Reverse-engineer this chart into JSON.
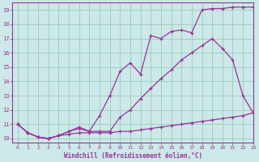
{
  "background_color": "#cce8e8",
  "grid_color": "#99ccbb",
  "line_color": "#993399",
  "xlim": [
    -0.5,
    23
  ],
  "ylim": [
    9.7,
    19.5
  ],
  "yticks": [
    10,
    11,
    12,
    13,
    14,
    15,
    16,
    17,
    18,
    19
  ],
  "xticks": [
    0,
    1,
    2,
    3,
    4,
    5,
    6,
    7,
    8,
    9,
    10,
    11,
    12,
    13,
    14,
    15,
    16,
    17,
    18,
    19,
    20,
    21,
    22,
    23
  ],
  "xlabel": "Windchill (Refroidissement éolien,°C)",
  "series1_x": [
    0,
    1,
    2,
    3,
    4,
    5,
    6,
    7,
    8,
    9,
    10,
    11,
    12,
    13,
    14,
    15,
    16,
    17,
    18,
    19,
    20,
    21,
    22,
    23
  ],
  "series1_y": [
    11.0,
    10.4,
    10.1,
    10.0,
    10.2,
    10.3,
    10.4,
    10.4,
    10.4,
    10.4,
    10.5,
    10.5,
    10.6,
    10.7,
    10.8,
    10.9,
    11.0,
    11.1,
    11.2,
    11.3,
    11.4,
    11.5,
    11.6,
    11.8
  ],
  "series2_x": [
    0,
    1,
    2,
    3,
    4,
    5,
    6,
    7,
    8,
    9,
    10,
    11,
    12,
    13,
    14,
    15,
    16,
    17,
    18,
    19,
    20,
    21,
    22,
    23
  ],
  "series2_y": [
    11.0,
    10.4,
    10.1,
    10.0,
    10.2,
    10.5,
    10.7,
    10.5,
    10.5,
    10.5,
    11.5,
    12.0,
    12.8,
    13.5,
    14.2,
    14.8,
    15.5,
    16.0,
    16.5,
    17.0,
    16.3,
    15.5,
    13.0,
    11.8
  ],
  "series3_x": [
    0,
    1,
    2,
    3,
    4,
    5,
    6,
    7,
    8,
    9,
    10,
    11,
    12,
    13,
    14,
    15,
    16,
    17,
    18,
    19,
    20,
    21,
    22,
    23
  ],
  "series3_y": [
    11.0,
    10.4,
    10.1,
    10.0,
    10.2,
    10.5,
    10.8,
    10.5,
    11.6,
    13.0,
    14.7,
    15.3,
    14.5,
    17.2,
    17.0,
    17.5,
    17.6,
    17.4,
    19.0,
    19.1,
    19.1,
    19.2,
    19.2,
    19.2
  ]
}
